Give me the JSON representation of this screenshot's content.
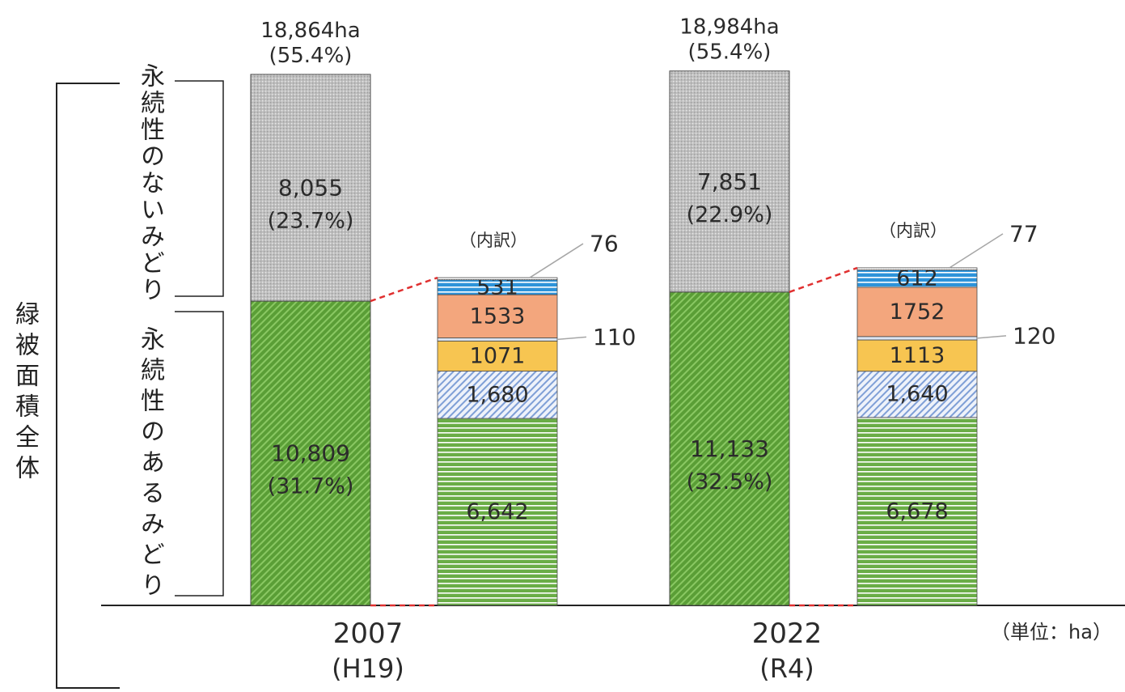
{
  "chart_data": {
    "type": "bar",
    "stacked": true,
    "overall_label": "緑被面積全体",
    "non_permanent_label": "永続性のないみどり",
    "permanent_label": "永続性のあるみどり",
    "breakdown_label": "（内訳）",
    "unit_label": "（単位：ha）",
    "groups": [
      {
        "x_label": "2007",
        "x_sublabel": "(H19)",
        "total": {
          "value": 18864,
          "label": "18,864ha",
          "share": "(55.4%)"
        },
        "non_permanent": {
          "value": 8055,
          "label": "8,055",
          "share": "(23.7%)",
          "color": "#bfbfbf"
        },
        "permanent": {
          "value": 10809,
          "label": "10,809",
          "share": "(31.7%)",
          "color": "#5a9e36"
        },
        "breakdown": [
          {
            "value": 6642,
            "label": "6,642",
            "color": "#6aad46"
          },
          {
            "value": 1680,
            "label": "1,680",
            "color": "#7f9fd6"
          },
          {
            "value": 1071,
            "label": "1071",
            "color": "#f7c551"
          },
          {
            "value": 110,
            "label": "110",
            "color": "#dbe5f3"
          },
          {
            "value": 1533,
            "label": "1533",
            "color": "#f3a67d"
          },
          {
            "value": 531,
            "label": "531",
            "color": "#2e93d9"
          },
          {
            "value": 76,
            "label": "76",
            "color": "#8c8c8c"
          }
        ]
      },
      {
        "x_label": "2022",
        "x_sublabel": "(R4)",
        "total": {
          "value": 18984,
          "label": "18,984ha",
          "share": "(55.4%)"
        },
        "non_permanent": {
          "value": 7851,
          "label": "7,851",
          "share": "(22.9%)",
          "color": "#bfbfbf"
        },
        "permanent": {
          "value": 11133,
          "label": "11,133",
          "share": "(32.5%)",
          "color": "#5a9e36"
        },
        "breakdown": [
          {
            "value": 6678,
            "label": "6,678",
            "color": "#6aad46"
          },
          {
            "value": 1640,
            "label": "1,640",
            "color": "#7f9fd6"
          },
          {
            "value": 1113,
            "label": "1113",
            "color": "#f7c551"
          },
          {
            "value": 120,
            "label": "120",
            "color": "#dbe5f3"
          },
          {
            "value": 1752,
            "label": "1752",
            "color": "#f3a67d"
          },
          {
            "value": 612,
            "label": "612",
            "color": "#2e93d9"
          },
          {
            "value": 77,
            "label": "77",
            "color": "#8c8c8c"
          }
        ]
      }
    ]
  }
}
